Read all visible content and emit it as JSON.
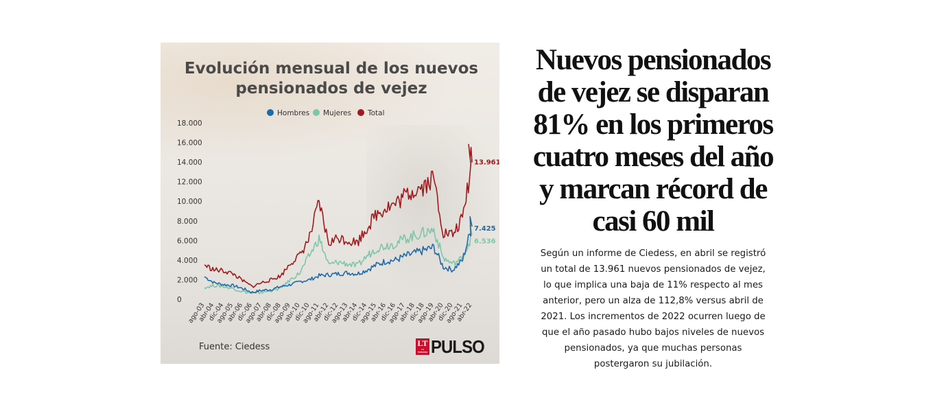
{
  "chart_data": {
    "type": "line",
    "title": "Evolución mensual de los nuevos pensionados de vejez",
    "source": "Fuente: Ciedess",
    "ylim": [
      0,
      18000
    ],
    "y_ticks": [
      "0",
      "2.000",
      "4.000",
      "6.000",
      "8.000",
      "10.000",
      "12.000",
      "14.000",
      "16.000",
      "18.000"
    ],
    "y_tick_values": [
      0,
      2000,
      4000,
      6000,
      8000,
      10000,
      12000,
      14000,
      16000,
      18000
    ],
    "x_ticks": [
      "ago-03",
      "abr-04",
      "dic-04",
      "ago-05",
      "abr-06",
      "dic-06",
      "ago-07",
      "abr-08",
      "dic-08",
      "ago-09",
      "abr-10",
      "dic-10",
      "ago-11",
      "abr-12",
      "dic-12",
      "ago-13",
      "abr-14",
      "dic-14",
      "ago-15",
      "abr-16",
      "dic-16",
      "ago-17",
      "abr-18",
      "dic-18",
      "ago-19",
      "abr-20",
      "dic-20",
      "ago-21",
      "abr-22"
    ],
    "grid": false,
    "legend_position": "top",
    "series": [
      {
        "name": "Hombres",
        "color": "#1f6aa8",
        "end_label": "7.425",
        "x_anchors": [
          "ago-03",
          "abr-04",
          "dic-04",
          "ago-05",
          "abr-06",
          "dic-06",
          "ago-07",
          "abr-08",
          "dic-08",
          "ago-09",
          "abr-10",
          "dic-10",
          "ago-11",
          "abr-12",
          "dic-12",
          "ago-13",
          "abr-14",
          "dic-14",
          "ago-15",
          "abr-16",
          "dic-16",
          "ago-17",
          "abr-18",
          "dic-18",
          "ago-19",
          "abr-20",
          "dic-20",
          "ago-21",
          "abr-22"
        ],
        "values": [
          2300,
          1700,
          1500,
          1400,
          1100,
          700,
          900,
          1000,
          1300,
          1500,
          1800,
          2000,
          2400,
          2500,
          2600,
          2700,
          2600,
          3000,
          3500,
          3900,
          4000,
          4400,
          4700,
          5000,
          5300,
          3300,
          3000,
          4000,
          7425
        ]
      },
      {
        "name": "Mujeres",
        "color": "#7fc6a8",
        "end_label": "6.536",
        "x_anchors": [
          "ago-03",
          "abr-04",
          "dic-04",
          "ago-05",
          "abr-06",
          "dic-06",
          "ago-07",
          "abr-08",
          "dic-08",
          "ago-09",
          "abr-10",
          "dic-10",
          "ago-11",
          "abr-12",
          "dic-12",
          "ago-13",
          "abr-14",
          "dic-14",
          "ago-15",
          "abr-16",
          "dic-16",
          "ago-17",
          "abr-18",
          "dic-18",
          "ago-19",
          "abr-20",
          "dic-20",
          "ago-21",
          "abr-22"
        ],
        "values": [
          1200,
          1400,
          1300,
          1100,
          800,
          600,
          700,
          900,
          1100,
          2000,
          2700,
          4500,
          6200,
          3500,
          3800,
          3600,
          3400,
          4400,
          5200,
          5500,
          5700,
          6200,
          6500,
          6800,
          7100,
          4200,
          3600,
          4200,
          6536
        ]
      },
      {
        "name": "Total",
        "color": "#a01a1d",
        "end_label": "13.961",
        "x_anchors": [
          "ago-03",
          "abr-04",
          "dic-04",
          "ago-05",
          "abr-06",
          "dic-06",
          "ago-07",
          "abr-08",
          "dic-08",
          "ago-09",
          "abr-10",
          "dic-10",
          "ago-11",
          "abr-12",
          "dic-12",
          "ago-13",
          "abr-14",
          "dic-14",
          "ago-15",
          "abr-16",
          "dic-16",
          "ago-17",
          "abr-18",
          "dic-18",
          "ago-19",
          "abr-20",
          "dic-20",
          "ago-21",
          "abr-22"
        ],
        "values": [
          3500,
          3000,
          2900,
          2600,
          1900,
          1300,
          1700,
          2000,
          2400,
          3700,
          4500,
          6300,
          9800,
          5700,
          6300,
          6000,
          5800,
          7300,
          8700,
          9400,
          9700,
          10600,
          11200,
          11600,
          12400,
          6800,
          6600,
          8200,
          13961
        ]
      }
    ]
  },
  "logo": {
    "box_letters": "LT",
    "box_subtext": "LA TERCERA",
    "brand": "PULSO"
  },
  "article": {
    "headline": "Nuevos pensionados de vejez se disparan 81% en los primeros cuatro meses del año y marcan récord de casi 60 mil",
    "body": "Según un informe de Ciedess, en abril se registró un total de 13.961 nuevos pensionados de vejez, lo que implica una baja de 11% respecto al mes anterior, pero un alza de 112,8% versus abril de 2021. Los incrementos de 2022 ocurren luego de que el año pasado hubo bajos niveles de nuevos pensionados, ya que muchas personas postergaron su jubilación."
  }
}
